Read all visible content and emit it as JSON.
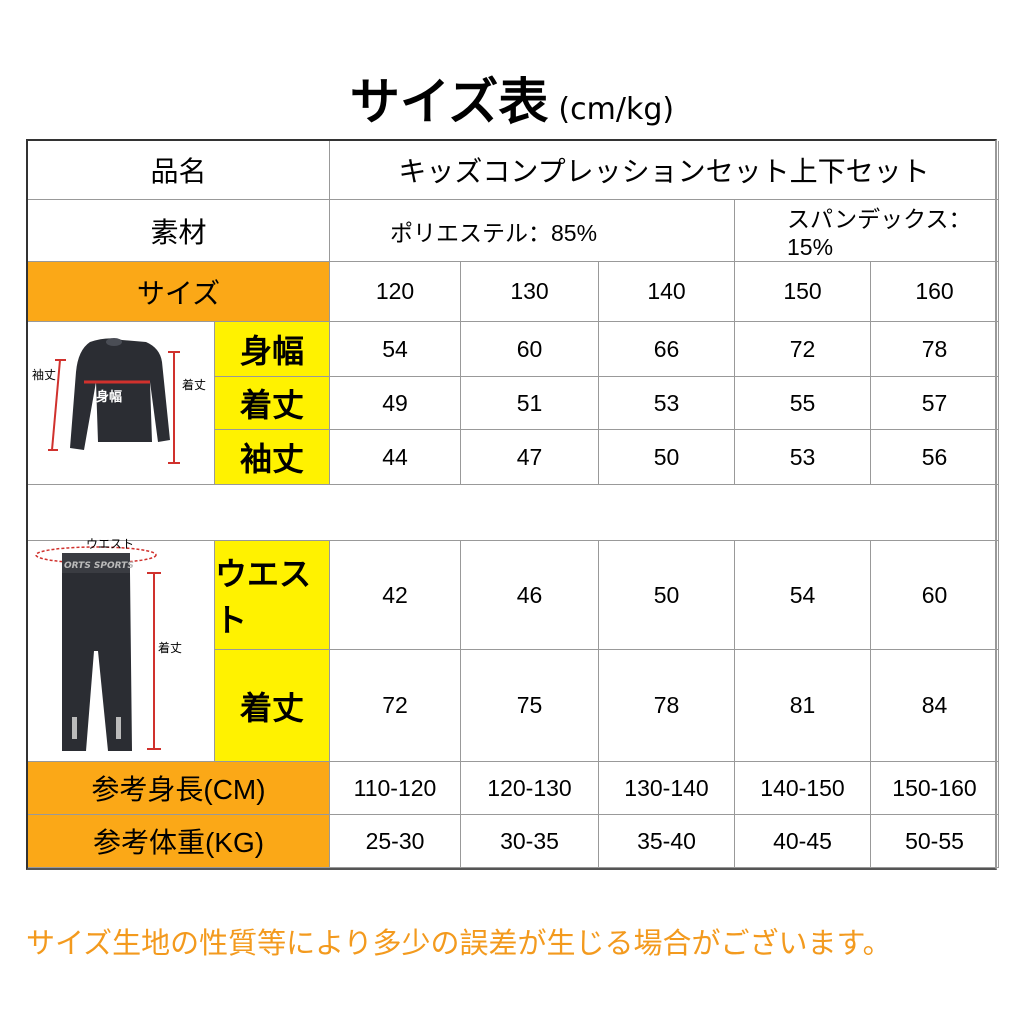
{
  "title": {
    "main": "サイズ表",
    "unit": "(cm/kg)"
  },
  "colors": {
    "orange": "#FBA817",
    "yellow": "#FFF200",
    "footer": "#F39A1E",
    "measure_line": "#D0312D"
  },
  "product": {
    "label": "品名",
    "value": "キッズコンプレッションセット上下セット"
  },
  "material": {
    "label": "素材",
    "items": [
      "ポリエステル：85%",
      "スパンデックス：15%"
    ]
  },
  "size": {
    "label": "サイズ",
    "values": [
      "120",
      "130",
      "140",
      "150",
      "160"
    ]
  },
  "top": {
    "image_labels": {
      "sleeve": "袖丈",
      "width": "身幅",
      "length": "着丈"
    },
    "rows": [
      {
        "label": "身幅",
        "values": [
          "54",
          "60",
          "66",
          "72",
          "78"
        ]
      },
      {
        "label": "着丈",
        "values": [
          "49",
          "51",
          "53",
          "55",
          "57"
        ]
      },
      {
        "label": "袖丈",
        "values": [
          "44",
          "47",
          "50",
          "53",
          "56"
        ]
      }
    ]
  },
  "bottom": {
    "image_labels": {
      "waist": "ウエスト",
      "length": "着丈",
      "band_text": "ORTS SPORTS"
    },
    "rows": [
      {
        "label": "ウエスト",
        "values": [
          "42",
          "46",
          "50",
          "54",
          "60"
        ]
      },
      {
        "label": "着丈",
        "values": [
          "72",
          "75",
          "78",
          "81",
          "84"
        ]
      }
    ]
  },
  "height": {
    "label": "参考身長(CM)",
    "values": [
      "110-120",
      "120-130",
      "130-140",
      "140-150",
      "150-160"
    ]
  },
  "weight": {
    "label": "参考体重(KG)",
    "values": [
      "25-30",
      "30-35",
      "35-40",
      "40-45",
      "50-55"
    ]
  },
  "footer": "サイズ生地の性質等により多少の誤差が生じる場合がございます。"
}
